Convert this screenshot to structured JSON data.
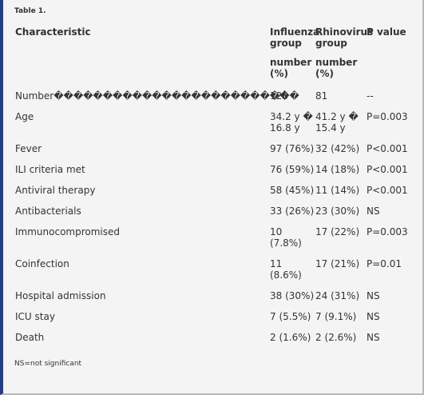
{
  "title": "Table 1.",
  "table": {
    "header": [
      "Characteristic",
      "Influenza group",
      "Rhinovirus group",
      "P value"
    ],
    "subheader": [
      "",
      "number (%)",
      "number (%)",
      ""
    ],
    "rows": [
      [
        "Number�������������������������",
        "128",
        "81",
        "--"
      ],
      [
        "Age",
        "34.2 y � 16.8 y",
        "41.2 y � 15.4 y",
        "P=0.003"
      ],
      [
        "Fever",
        "97 (76%)",
        "32 (42%)",
        "P<0.001"
      ],
      [
        "ILI criteria met",
        "76 (59%)",
        "14 (18%)",
        "P<0.001"
      ],
      [
        "Antiviral therapy",
        "58 (45%)",
        "11 (14%)",
        "P<0.001"
      ],
      [
        "Antibacterials",
        "33 (26%)",
        "23 (30%)",
        "NS"
      ],
      [
        "Immunocompromised",
        "10 (7.8%)",
        "17 (22%)",
        "P=0.003"
      ],
      [
        "Coinfection",
        "11 (8.6%)",
        "17 (21%)",
        "P=0.01"
      ],
      [
        "Hospital admission",
        "38 (30%)",
        "24 (31%)",
        "NS"
      ],
      [
        "ICU stay",
        "7 (5.5%)",
        "7 (9.1%)",
        "NS"
      ],
      [
        "Death",
        "2 (1.6%)",
        "2 (2.6%)",
        "NS"
      ]
    ]
  },
  "footnote": "NS=not significant"
}
